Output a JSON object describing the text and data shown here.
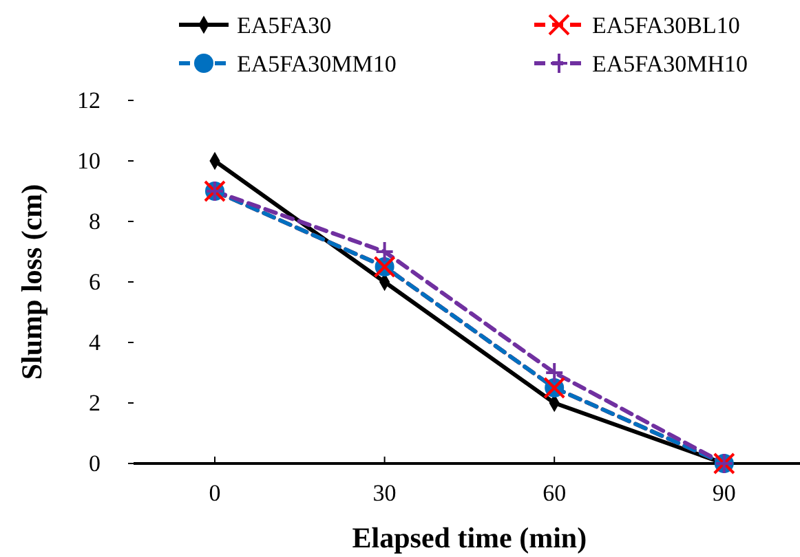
{
  "chart_data": {
    "type": "line",
    "xlabel": "Elapsed time (min)",
    "ylabel": "Slump loss (cm)",
    "categories": [
      "0",
      "30",
      "60",
      "90"
    ],
    "ylim": [
      0,
      12
    ],
    "yticks": [
      0,
      2,
      4,
      6,
      8,
      10,
      12
    ],
    "grid": false,
    "legend": "top",
    "series": [
      {
        "name": "EA5FA30",
        "color": "#000000",
        "values": [
          10,
          6,
          2,
          0
        ],
        "marker": "diamond",
        "line_style": "solid"
      },
      {
        "name": "EA5FA30BL10",
        "color": "#ff0000",
        "values": [
          9,
          6.5,
          2.5,
          0
        ],
        "marker": "cross",
        "line_style": "dashed"
      },
      {
        "name": "EA5FA30MM10",
        "color": "#0070c0",
        "values": [
          9,
          6.5,
          2.5,
          0
        ],
        "marker": "circle",
        "line_style": "dashed"
      },
      {
        "name": "EA5FA30MH10",
        "color": "#7030a0",
        "values": [
          9,
          7,
          3,
          0
        ],
        "marker": "plus",
        "line_style": "dashed"
      }
    ]
  }
}
